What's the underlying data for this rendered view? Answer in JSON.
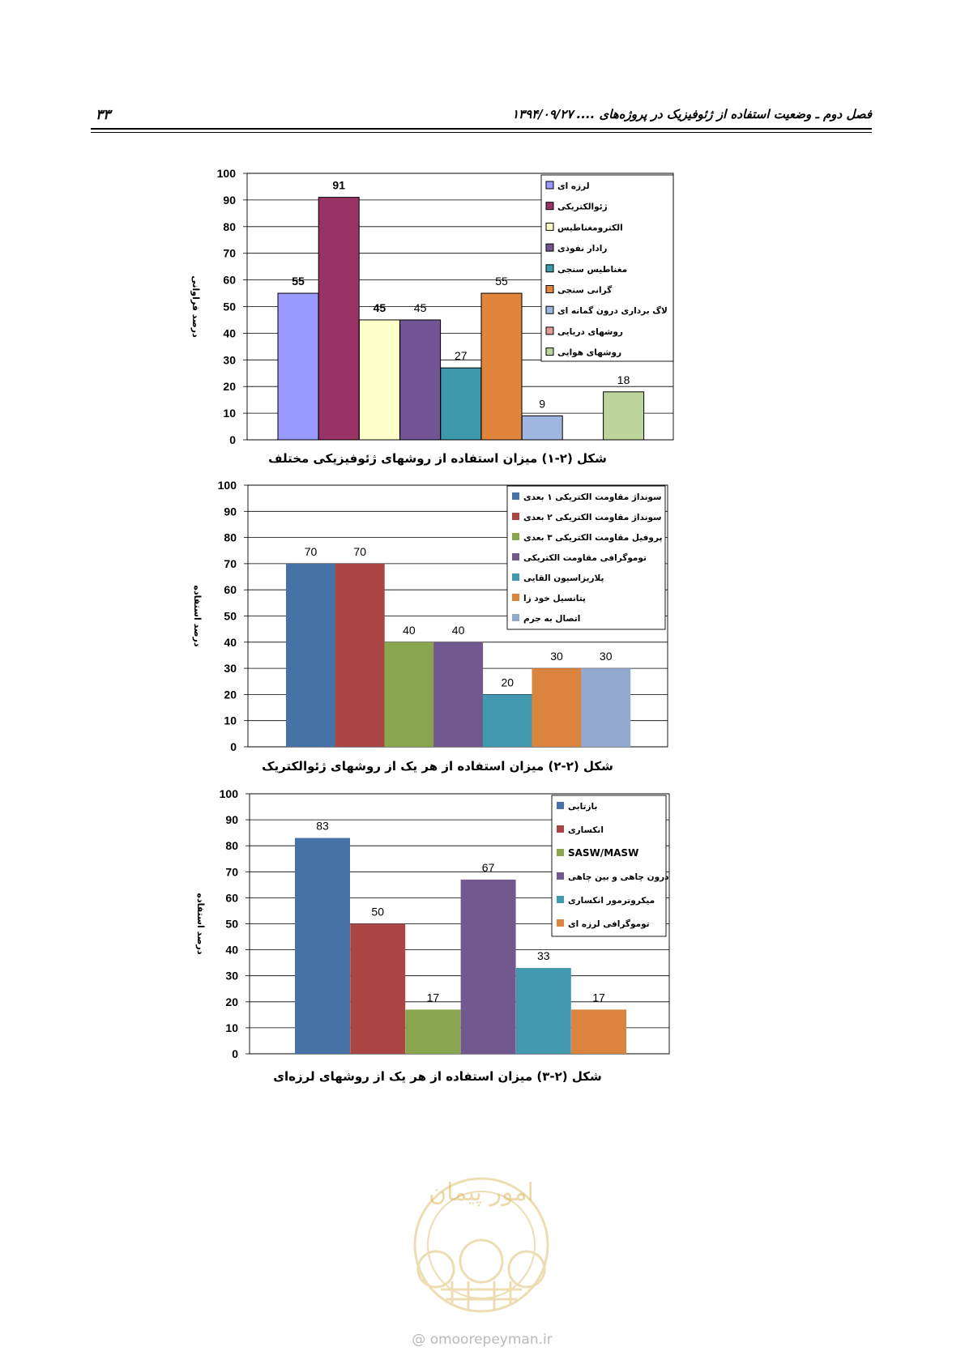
{
  "header": {
    "page_number": "۳۳",
    "date": "۱۳۹۴/۰۹/۲۷",
    "chapter_title": "فصل دوم  ـ وضعیت استفاده از ژئوفیزیک در پروژه‌های ...."
  },
  "chart_data": [
    {
      "type": "bar",
      "ylabel": "درصد فراوانی",
      "ylim": [
        0,
        100
      ],
      "yticks": [
        0,
        10,
        20,
        30,
        40,
        50,
        60,
        70,
        80,
        90,
        100
      ],
      "grid": true,
      "legend_position": "top-right",
      "caption": "شکل (۲-۱) میزان استفاده از روشهای ژئوفیزیکی مختلف",
      "series": [
        {
          "name": "لرزه ای",
          "value": 55,
          "label": "55",
          "color": "#9999ff"
        },
        {
          "name": "ژئوالکتریکی",
          "value": 91,
          "label": "91",
          "color": "#993366"
        },
        {
          "name": "الکترومغناطیس",
          "value": 45,
          "label": "45",
          "color": "#ffffcc"
        },
        {
          "name": "رادار نفوذی",
          "value": 45,
          "label": "45",
          "color": "#735596"
        },
        {
          "name": "مغناطیس سنجی",
          "value": 27,
          "label": "27",
          "color": "#3d9aad"
        },
        {
          "name": "گرانی سنجی",
          "value": 55,
          "label": "55",
          "color": "#e0853b"
        },
        {
          "name": "لاگ برداری درون گمانه ای",
          "value": 9,
          "label": "9",
          "color": "#9fb6e0"
        },
        {
          "name": "روشهای دریایی",
          "value": 0,
          "label": "",
          "color": "#e39a9a"
        },
        {
          "name": "روشهای هوایی",
          "value": 18,
          "label": "18",
          "color": "#bcd39a"
        }
      ]
    },
    {
      "type": "bar",
      "ylabel": "درصد استفاده",
      "ylim": [
        0,
        100
      ],
      "yticks": [
        0,
        10,
        20,
        30,
        40,
        50,
        60,
        70,
        80,
        90,
        100
      ],
      "grid": true,
      "legend_position": "top-right",
      "caption": "شکل (۲-۲) میزان استفاده از هر یک از روشهای ژئوالکتریک",
      "series": [
        {
          "name": "سونداژ مقاومت الکتریکی ۱ بعدی",
          "value": 70,
          "label": "70",
          "color": "#4672a8"
        },
        {
          "name": "سونداژ مقاومت الکتریکی ۲ بعدی",
          "value": 70,
          "label": "70",
          "color": "#a94543"
        },
        {
          "name": "پروفیل مقاومت الکتریکی ۳ بعدی",
          "value": 40,
          "label": "40",
          "color": "#89a54e"
        },
        {
          "name": "توموگرافی مقاومت الکتریکی",
          "value": 40,
          "label": "40",
          "color": "#71588f"
        },
        {
          "name": "پلاریزاسیون القایی",
          "value": 20,
          "label": "20",
          "color": "#4298af"
        },
        {
          "name": "پتانسیل خود زا",
          "value": 30,
          "label": "30",
          "color": "#db843d"
        },
        {
          "name": "اتصال به جرم",
          "value": 30,
          "label": "30",
          "color": "#93a9cf"
        }
      ]
    },
    {
      "type": "bar",
      "ylabel": "درصد استفاده",
      "ylim": [
        0,
        100
      ],
      "yticks": [
        0,
        10,
        20,
        30,
        40,
        50,
        60,
        70,
        80,
        90,
        100
      ],
      "grid": true,
      "legend_position": "top-right",
      "caption": "شکل (۲-۳) میزان استفاده از هر یک از روشهای لرزه‌ای",
      "series": [
        {
          "name": "بازتابی",
          "value": 83,
          "label": "83",
          "color": "#4672a8"
        },
        {
          "name": "انکساری",
          "value": 50,
          "label": "50",
          "color": "#a94543"
        },
        {
          "name": "SASW/MASW",
          "value": 17,
          "label": "17",
          "color": "#89a54e"
        },
        {
          "name": "درون چاهی و بین چاهی",
          "value": 67,
          "label": "67",
          "color": "#71588f"
        },
        {
          "name": "میکروترمور انکساری",
          "value": 33,
          "label": "33",
          "color": "#4298af"
        },
        {
          "name": "توموگرافی لرزه ای",
          "value": 17,
          "label": "17",
          "color": "#db843d"
        }
      ]
    }
  ],
  "watermark": {
    "site": "omoorepeyman.ir",
    "stamp_text": "امور پیمان"
  }
}
